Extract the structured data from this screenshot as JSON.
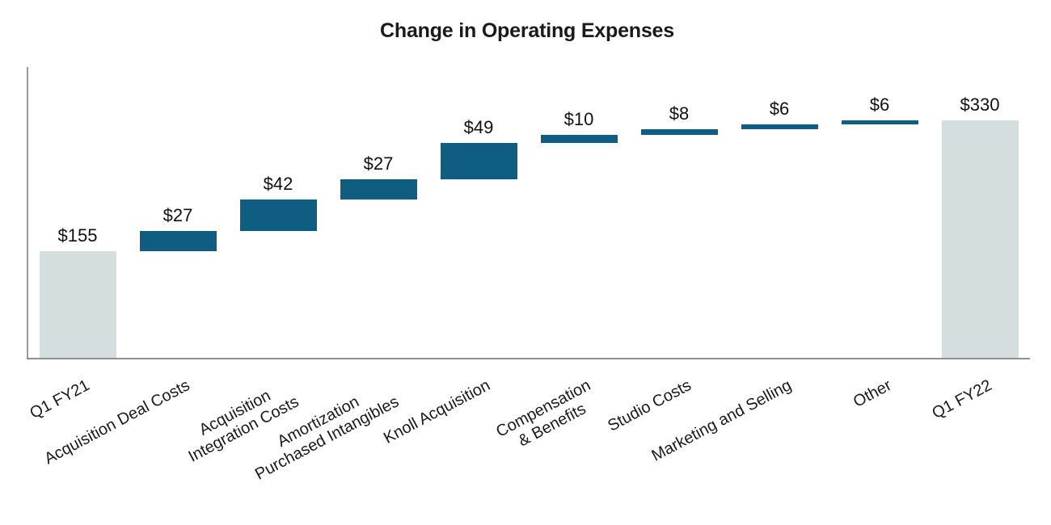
{
  "chart_data": {
    "type": "bar",
    "subtype": "waterfall",
    "title": "Change in Operating Expenses",
    "xlabel": "",
    "ylabel": "",
    "ylim": [
      0,
      360
    ],
    "grid": false,
    "legend": "none",
    "categories": [
      "Q1 FY21",
      "Acquisition Deal Costs",
      "Acquisition Integration Costs",
      "Amortization Purchased Intangibles",
      "Knoll Acquisition",
      "Compensation & Benefits",
      "Studio Costs",
      "Marketing and Selling",
      "Other",
      "Q1 FY22"
    ],
    "series": [
      {
        "name": "Operating Expenses",
        "values": [
          155,
          27,
          42,
          27,
          49,
          10,
          8,
          6,
          6,
          330
        ]
      }
    ],
    "bars": [
      {
        "label_lines": [
          "Q1 FY21"
        ],
        "value": 155,
        "display": "$155",
        "type": "total"
      },
      {
        "label_lines": [
          "Acquisition Deal Costs"
        ],
        "value": 27,
        "display": "$27",
        "type": "delta"
      },
      {
        "label_lines": [
          "Acquisition",
          "Integration Costs"
        ],
        "value": 42,
        "display": "$42",
        "type": "delta"
      },
      {
        "label_lines": [
          "Amortization",
          "Purchased Intangibles"
        ],
        "value": 27,
        "display": "$27",
        "type": "delta"
      },
      {
        "label_lines": [
          "Knoll Acquisition"
        ],
        "value": 49,
        "display": "$49",
        "type": "delta"
      },
      {
        "label_lines": [
          "Compensation",
          "& Benefits"
        ],
        "value": 10,
        "display": "$10",
        "type": "delta"
      },
      {
        "label_lines": [
          "Studio Costs"
        ],
        "value": 8,
        "display": "$8",
        "type": "delta"
      },
      {
        "label_lines": [
          "Marketing and Selling"
        ],
        "value": 6,
        "display": "$6",
        "type": "delta"
      },
      {
        "label_lines": [
          "Other"
        ],
        "value": 6,
        "display": "$6",
        "type": "delta"
      },
      {
        "label_lines": [
          "Q1 FY22"
        ],
        "value": 330,
        "display": "$330",
        "type": "total"
      }
    ],
    "colors": {
      "delta": "#0f5d81",
      "total": "#d5dedf",
      "axis": "#9b9b9b",
      "text": "#1a1a1a"
    }
  }
}
